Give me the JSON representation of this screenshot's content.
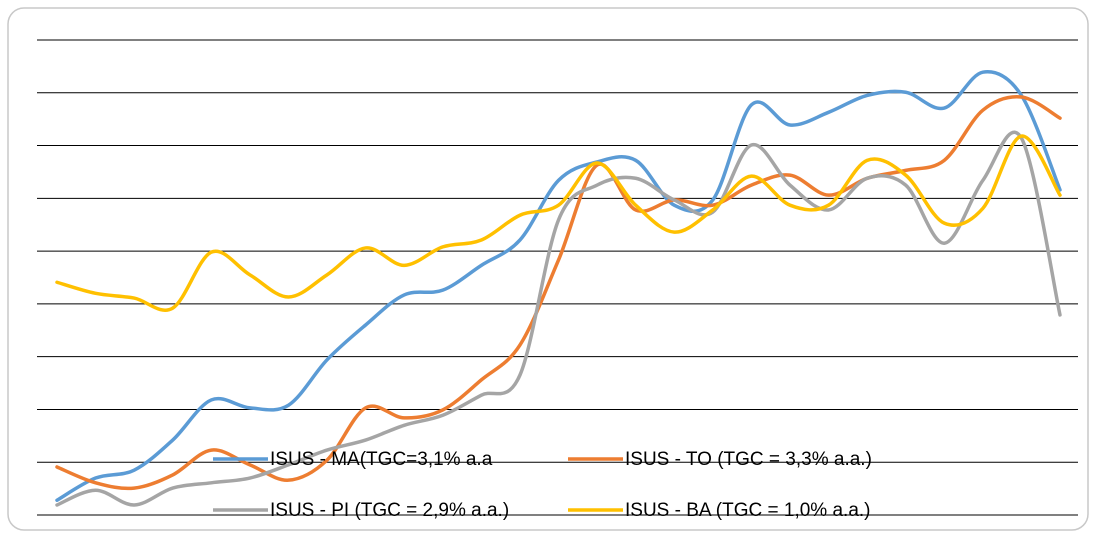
{
  "chart_data": {
    "type": "line",
    "categories": [
      null,
      null,
      null,
      null,
      null,
      null,
      null,
      null,
      null,
      null,
      null,
      null,
      null,
      null,
      null,
      null,
      null,
      null,
      null,
      null,
      null,
      null,
      null,
      null,
      null,
      null,
      null
    ],
    "series": [
      {
        "name": "ISUS - MA(TGC=3,1% a.a",
        "color": "#5b9bd5",
        "values": [
          0.28,
          0.7,
          0.85,
          1.42,
          2.18,
          2.03,
          2.08,
          2.94,
          3.6,
          4.17,
          4.26,
          4.73,
          5.21,
          6.34,
          6.69,
          6.72,
          5.87,
          5.97,
          7.77,
          7.39,
          7.63,
          7.95,
          8.01,
          7.71,
          8.39,
          7.95,
          6.16
        ]
      },
      {
        "name": "ISUS - TO (TGC = 3,3% a.a.)",
        "color": "#ed7d31",
        "values": [
          0.91,
          0.61,
          0.51,
          0.76,
          1.23,
          0.95,
          0.66,
          1.04,
          2.03,
          1.84,
          1.99,
          2.56,
          3.22,
          4.83,
          6.63,
          5.78,
          5.97,
          5.87,
          6.25,
          6.44,
          6.06,
          6.38,
          6.53,
          6.72,
          7.67,
          7.92,
          7.52
        ]
      },
      {
        "name": "ISUS - PI (TGC = 2,9% a.a.)",
        "color": "#a5a5a5",
        "values": [
          0.19,
          0.47,
          0.19,
          0.51,
          0.61,
          0.7,
          0.95,
          1.23,
          1.42,
          1.7,
          1.89,
          2.27,
          2.65,
          5.59,
          6.25,
          6.38,
          5.97,
          5.74,
          7.01,
          6.25,
          5.78,
          6.38,
          6.25,
          5.15,
          6.34,
          7.14,
          3.79
        ]
      },
      {
        "name": "ISUS - BA (TGC = 1,0% a.a.)",
        "color": "#ffc000",
        "values": [
          4.41,
          4.2,
          4.11,
          3.92,
          4.98,
          4.55,
          4.13,
          4.55,
          5.06,
          4.73,
          5.08,
          5.21,
          5.68,
          5.87,
          6.67,
          5.87,
          5.36,
          5.78,
          6.42,
          5.87,
          5.87,
          6.72,
          6.44,
          5.53,
          5.81,
          7.18,
          6.06
        ]
      }
    ],
    "ylim": [
      0,
      9
    ],
    "yticks": [
      0,
      1,
      2,
      3,
      4,
      5,
      6,
      7,
      8,
      9
    ],
    "grid": true,
    "smooth": true,
    "legend": "bottom"
  }
}
